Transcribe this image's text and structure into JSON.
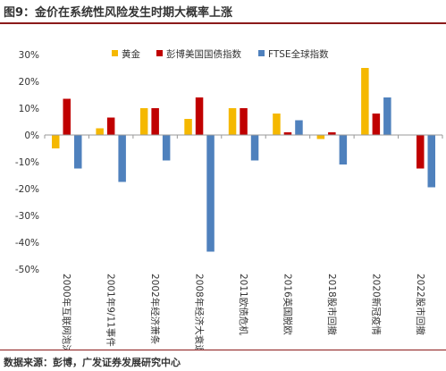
{
  "figure": {
    "title": "图9：金价在系统性风险发生时期大概率上涨",
    "source": "数据来源：彭博，广发证券发展研究中心"
  },
  "colors": {
    "title_rule": "#8b1a1a",
    "gold": "#f5b800",
    "bond": "#c00000",
    "ftse": "#4f81bd"
  },
  "chart_data": {
    "type": "bar",
    "title": "",
    "xlabel": "",
    "ylabel": "",
    "ylim": [
      -50,
      30
    ],
    "yticks": [
      30,
      20,
      10,
      0,
      -10,
      -20,
      -30,
      -40,
      -50
    ],
    "ytick_labels": [
      "30%",
      "20%",
      "10%",
      "0%",
      "-10%",
      "-20%",
      "-30%",
      "-40%",
      "-50%"
    ],
    "grid": false,
    "legend": "top",
    "categories": [
      "2000年互联网泡沫",
      "2001年9/11事件",
      "2002年经济萧条",
      "2008年经济大衰退",
      "2011欧债危机",
      "2016英国脱欧",
      "2018股市回撤",
      "2020新冠疫情",
      "2022股市回撤"
    ],
    "series": [
      {
        "name": "黄金",
        "values": [
          -5,
          2.5,
          10,
          6,
          10,
          8,
          -1.5,
          25,
          null
        ]
      },
      {
        "name": "彭博美国国债指数",
        "values": [
          13.5,
          6.5,
          10,
          14,
          10,
          1,
          1,
          8,
          -12.5
        ]
      },
      {
        "name": "FTSE全球指数",
        "values": [
          -12.5,
          -17.5,
          -9.5,
          -43.5,
          -9.5,
          5.5,
          -11,
          14,
          -19.5
        ]
      }
    ]
  }
}
